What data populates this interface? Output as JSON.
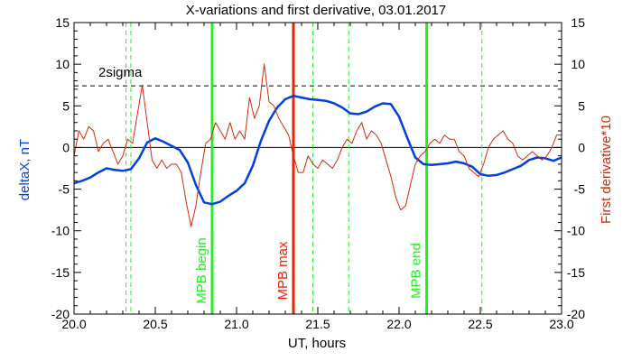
{
  "chart_data": {
    "type": "line",
    "title": "X-variations and first derivative, 03.01.2017",
    "xlabel": "UT, hours",
    "ylabel_left": "deltaX, nT",
    "ylabel_right": "First derivative*10",
    "xlim": [
      20.0,
      23.0
    ],
    "ylim": [
      -20,
      15
    ],
    "x_ticks": [
      "20.0",
      "20.5",
      "21.0",
      "21.5",
      "22.0",
      "22.5",
      "23.0"
    ],
    "y_ticks": [
      "15",
      "10",
      "5",
      "0",
      "-5",
      "-10",
      "-15",
      "-20"
    ],
    "colors": {
      "deltaX": "#0040dd",
      "derivative": "#d42a0a",
      "green": "#22ee22",
      "red": "#ee2200"
    },
    "threshold": {
      "label": "2sigma",
      "value": 7.4
    },
    "zero_line": 0,
    "vlines_solid": [
      {
        "x": 20.85,
        "label": "MPB begin",
        "color": "#22ee22"
      },
      {
        "x": 21.35,
        "label": "MPB max",
        "color": "#ee2200"
      },
      {
        "x": 22.17,
        "label": "MPB end",
        "color": "#22ee22"
      }
    ],
    "vlines_dashed": [
      20.32,
      20.35,
      21.47,
      21.69,
      22.51
    ],
    "series": [
      {
        "key": "deltaX",
        "x": [
          20.0,
          20.05,
          20.1,
          20.15,
          20.2,
          20.25,
          20.3,
          20.35,
          20.4,
          20.45,
          20.5,
          20.55,
          20.6,
          20.65,
          20.7,
          20.75,
          20.8,
          20.85,
          20.9,
          20.95,
          21.0,
          21.05,
          21.1,
          21.15,
          21.2,
          21.25,
          21.3,
          21.35,
          21.4,
          21.45,
          21.5,
          21.55,
          21.6,
          21.65,
          21.7,
          21.75,
          21.8,
          21.85,
          21.9,
          21.95,
          22.0,
          22.05,
          22.1,
          22.15,
          22.2,
          22.25,
          22.3,
          22.35,
          22.4,
          22.45,
          22.5,
          22.55,
          22.6,
          22.65,
          22.7,
          22.75,
          22.8,
          22.85,
          22.9,
          22.95,
          23.0
        ],
        "values": [
          -4.3,
          -4.0,
          -3.6,
          -3.0,
          -2.5,
          -2.7,
          -2.8,
          -2.6,
          -1.3,
          0.6,
          1.1,
          0.7,
          0.2,
          -0.3,
          -1.8,
          -4.5,
          -6.6,
          -6.8,
          -6.5,
          -5.8,
          -5.2,
          -4.3,
          -2.2,
          0.8,
          3.2,
          4.8,
          5.8,
          6.2,
          6.0,
          5.8,
          5.7,
          5.6,
          5.3,
          4.8,
          4.1,
          4.0,
          4.3,
          4.9,
          5.3,
          5.2,
          3.7,
          1.2,
          -1.2,
          -2.0,
          -2.1,
          -2.0,
          -1.9,
          -1.7,
          -1.9,
          -2.3,
          -3.2,
          -3.4,
          -3.3,
          -3.0,
          -2.6,
          -2.2,
          -1.5,
          -1.2,
          -1.3,
          -1.6,
          -1.2
        ]
      },
      {
        "key": "derivative",
        "x": [
          20.0,
          20.03,
          20.06,
          20.09,
          20.12,
          20.15,
          20.18,
          20.21,
          20.24,
          20.27,
          20.3,
          20.33,
          20.36,
          20.39,
          20.42,
          20.45,
          20.48,
          20.51,
          20.54,
          20.57,
          20.6,
          20.63,
          20.66,
          20.69,
          20.72,
          20.75,
          20.78,
          20.81,
          20.84,
          20.87,
          20.9,
          20.93,
          20.96,
          20.99,
          21.02,
          21.05,
          21.08,
          21.11,
          21.14,
          21.17,
          21.2,
          21.23,
          21.26,
          21.29,
          21.32,
          21.35,
          21.38,
          21.41,
          21.44,
          21.47,
          21.5,
          21.53,
          21.56,
          21.59,
          21.62,
          21.65,
          21.68,
          21.71,
          21.74,
          21.77,
          21.8,
          21.83,
          21.86,
          21.89,
          21.92,
          21.95,
          21.98,
          22.01,
          22.04,
          22.07,
          22.1,
          22.13,
          22.16,
          22.19,
          22.22,
          22.25,
          22.28,
          22.31,
          22.34,
          22.37,
          22.4,
          22.43,
          22.46,
          22.49,
          22.52,
          22.55,
          22.58,
          22.61,
          22.64,
          22.67,
          22.7,
          22.73,
          22.76,
          22.79,
          22.82,
          22.85,
          22.88,
          22.91,
          22.94,
          22.97,
          23.0
        ],
        "values": [
          -1.0,
          2.0,
          1.0,
          2.5,
          2.0,
          -0.5,
          0.5,
          1.0,
          -0.5,
          -2.0,
          -1.0,
          1.0,
          0.5,
          4.0,
          7.5,
          3.0,
          -1.5,
          -2.5,
          -1.5,
          -2.5,
          -2.0,
          -2.0,
          -3.0,
          -6.5,
          -9.5,
          -7.0,
          -3.0,
          0.5,
          1.0,
          3.0,
          2.0,
          1.0,
          3.0,
          1.0,
          2.0,
          1.0,
          6.0,
          3.5,
          5.0,
          10.0,
          5.5,
          5.0,
          3.5,
          2.5,
          1.5,
          -1.0,
          -3.0,
          -3.0,
          -1.0,
          -2.0,
          -2.5,
          -1.5,
          -2.0,
          -2.5,
          -1.5,
          0.0,
          1.0,
          0.5,
          2.0,
          3.0,
          1.0,
          2.0,
          1.5,
          0.5,
          -1.5,
          -3.5,
          -6.0,
          -7.5,
          -7.0,
          -4.5,
          -2.0,
          -1.0,
          -0.5,
          0.5,
          1.0,
          0.5,
          1.5,
          1.0,
          1.0,
          -0.5,
          -1.0,
          -2.5,
          -3.0,
          -3.5,
          -2.0,
          0.0,
          1.0,
          1.5,
          2.0,
          1.0,
          0.5,
          -1.0,
          -1.5,
          -1.0,
          -0.5,
          -1.0,
          -1.5,
          -1.0,
          0.0,
          1.5,
          1.5
        ]
      }
    ]
  }
}
